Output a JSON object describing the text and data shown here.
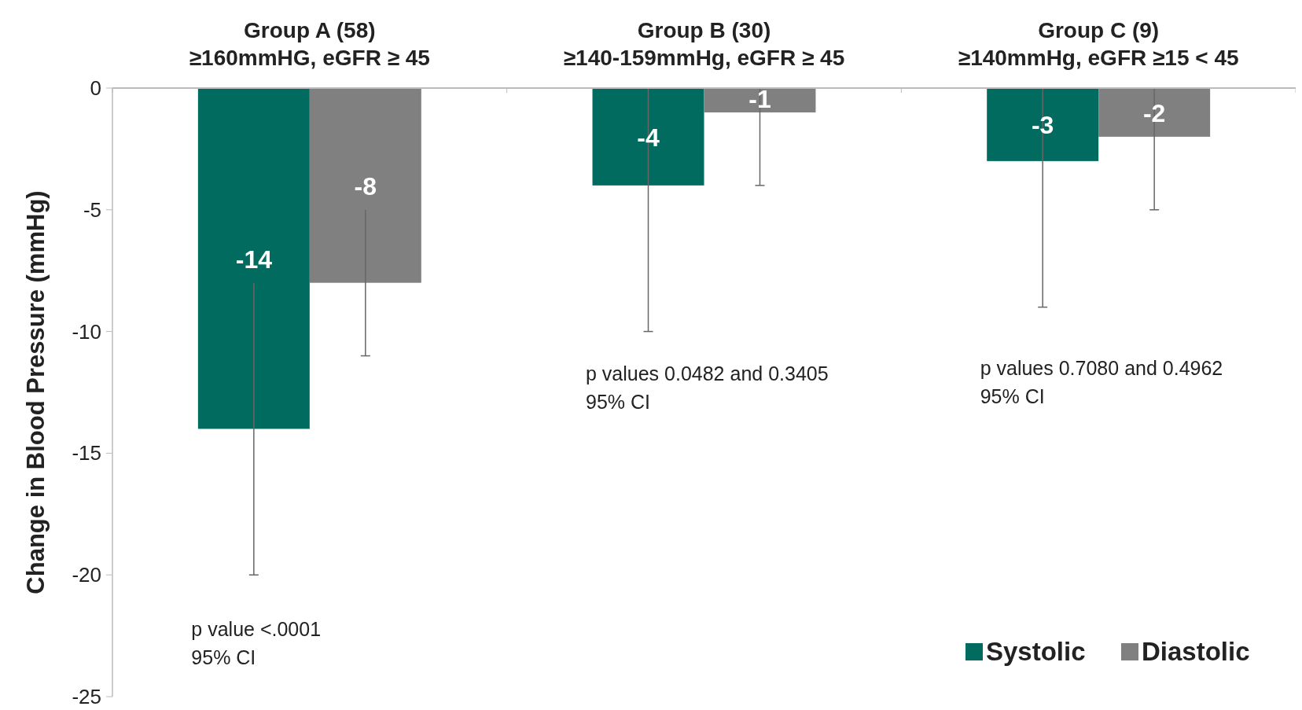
{
  "chart_data": {
    "type": "bar",
    "categories": [
      "Group A (58)\n≥160mmHG, eGFR ≥ 45",
      "Group B (30)\n≥140-159mmHg, eGFR ≥ 45",
      "Group C (9)\n≥140mmHg, eGFR ≥15 < 45"
    ],
    "series": [
      {
        "name": "Systolic",
        "color": "#006b5e",
        "values": [
          -14,
          -4,
          -3
        ],
        "errors": [
          [
            -20,
            -8
          ],
          [
            -10,
            0
          ],
          [
            -9,
            0
          ]
        ]
      },
      {
        "name": "Diastolic",
        "color": "#808080",
        "values": [
          -8,
          -1,
          -2
        ],
        "errors": [
          [
            -11,
            -5
          ],
          [
            -4,
            0
          ],
          [
            -5,
            0
          ]
        ]
      }
    ],
    "ylabel": "Change in Blood Pressure (mmHg)",
    "ylim": [
      -25,
      0
    ],
    "yticks": [
      0,
      -5,
      -10,
      -15,
      -20,
      -25
    ],
    "data_labels": true,
    "legend": "bottom right",
    "grid": false,
    "annotations": [
      "p value <.0001\n95% CI",
      "p values 0.0482 and 0.3405\n95% CI",
      "p values 0.7080 and 0.4962\n95% CI"
    ]
  }
}
